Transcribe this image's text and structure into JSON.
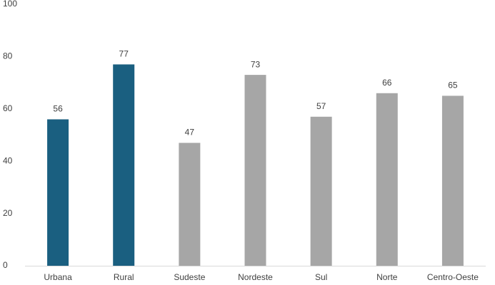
{
  "chart_data": {
    "type": "bar",
    "categories": [
      "Urbana",
      "Rural",
      "Sudeste",
      "Nordeste",
      "Sul",
      "Norte",
      "Centro-Oeste"
    ],
    "values": [
      56,
      77,
      47,
      73,
      57,
      66,
      65
    ],
    "colors": [
      "#1a5f80",
      "#1a5f80",
      "#a6a6a6",
      "#a6a6a6",
      "#a6a6a6",
      "#a6a6a6",
      "#a6a6a6"
    ],
    "ylim": [
      0,
      100
    ],
    "yticks": [
      0,
      20,
      40,
      60,
      80,
      100
    ],
    "grid": false,
    "data_labels": true
  }
}
